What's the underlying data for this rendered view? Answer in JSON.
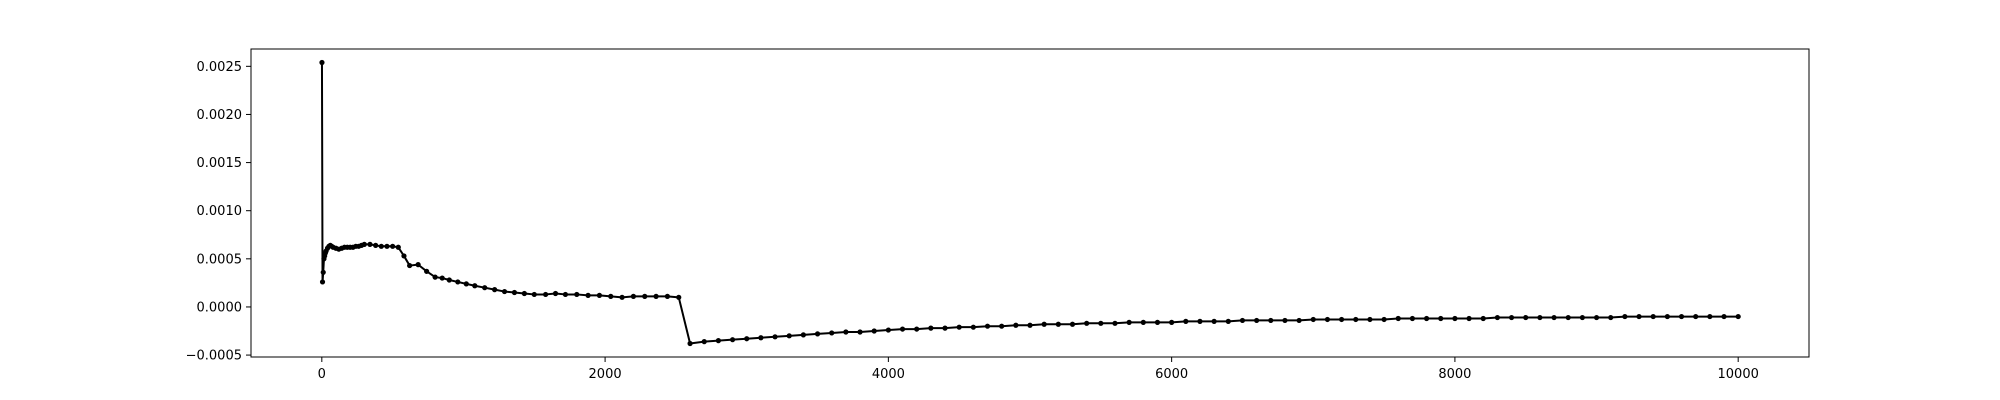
{
  "chart_data": {
    "type": "line",
    "title": "",
    "xlabel": "",
    "ylabel": "",
    "xlim": [
      -500,
      10500
    ],
    "ylim": [
      -0.00052,
      0.00268
    ],
    "grid": false,
    "legend": "none",
    "line_color": "#000000",
    "marker": "dot",
    "x_ticks": [
      0,
      2000,
      4000,
      6000,
      8000,
      10000
    ],
    "x_tick_labels": [
      "0",
      "2000",
      "4000",
      "6000",
      "8000",
      "10000"
    ],
    "y_ticks": [
      -0.0005,
      0.0,
      0.0005,
      0.001,
      0.0015,
      0.002,
      0.0025
    ],
    "y_tick_labels": [
      "−0.0005",
      "0.0000",
      "0.0005",
      "0.0010",
      "0.0015",
      "0.0020",
      "0.0025"
    ],
    "series": [
      {
        "x": [
          1,
          5,
          10,
          15,
          20,
          25,
          30,
          40,
          50,
          60,
          70,
          80,
          100,
          120,
          140,
          160,
          180,
          200,
          220,
          240,
          260,
          280,
          300,
          340,
          380,
          420,
          460,
          500,
          540,
          580,
          620,
          680,
          740,
          800,
          850,
          900,
          960,
          1020,
          1080,
          1150,
          1220,
          1290,
          1360,
          1430,
          1500,
          1580,
          1650,
          1720,
          1800,
          1880,
          1960,
          2040,
          2120,
          2200,
          2280,
          2360,
          2440,
          2520,
          2600,
          2700,
          2800,
          2900,
          3000,
          3100,
          3200,
          3300,
          3400,
          3500,
          3600,
          3700,
          3800,
          3900,
          4000,
          4100,
          4200,
          4300,
          4400,
          4500,
          4600,
          4700,
          4800,
          4900,
          5000,
          5100,
          5200,
          5300,
          5400,
          5500,
          5600,
          5700,
          5800,
          5900,
          6000,
          6100,
          6200,
          6300,
          6400,
          6500,
          6600,
          6700,
          6800,
          6900,
          7000,
          7100,
          7200,
          7300,
          7400,
          7500,
          7600,
          7700,
          7800,
          7900,
          8000,
          8100,
          8200,
          8300,
          8400,
          8500,
          8600,
          8700,
          8800,
          8900,
          9000,
          9100,
          9200,
          9300,
          9400,
          9500,
          9600,
          9700,
          9800,
          9900,
          10000
        ],
        "y": [
          0.00254,
          0.00026,
          0.00036,
          0.0005,
          0.00053,
          0.00056,
          0.00058,
          0.00061,
          0.00063,
          0.00064,
          0.00063,
          0.00062,
          0.00061,
          0.0006,
          0.00061,
          0.00062,
          0.00062,
          0.00062,
          0.00062,
          0.00063,
          0.00063,
          0.00064,
          0.00065,
          0.00065,
          0.00064,
          0.00063,
          0.00063,
          0.00063,
          0.00062,
          0.00053,
          0.00043,
          0.00044,
          0.00037,
          0.00031,
          0.0003,
          0.00028,
          0.00026,
          0.00024,
          0.00022,
          0.0002,
          0.00018,
          0.00016,
          0.00015,
          0.00014,
          0.00013,
          0.00013,
          0.00014,
          0.00013,
          0.00013,
          0.00012,
          0.00012,
          0.00011,
          0.0001,
          0.00011,
          0.00011,
          0.00011,
          0.00011,
          0.0001,
          -0.00038,
          -0.00036,
          -0.00035,
          -0.00034,
          -0.00033,
          -0.00032,
          -0.00031,
          -0.0003,
          -0.00029,
          -0.00028,
          -0.00027,
          -0.00026,
          -0.00026,
          -0.00025,
          -0.00024,
          -0.00023,
          -0.00023,
          -0.00022,
          -0.00022,
          -0.00021,
          -0.00021,
          -0.0002,
          -0.0002,
          -0.00019,
          -0.00019,
          -0.00018,
          -0.00018,
          -0.00018,
          -0.00017,
          -0.00017,
          -0.00017,
          -0.00016,
          -0.00016,
          -0.00016,
          -0.00016,
          -0.00015,
          -0.00015,
          -0.00015,
          -0.00015,
          -0.00014,
          -0.00014,
          -0.00014,
          -0.00014,
          -0.00014,
          -0.00013,
          -0.00013,
          -0.00013,
          -0.00013,
          -0.00013,
          -0.00013,
          -0.00012,
          -0.00012,
          -0.00012,
          -0.00012,
          -0.00012,
          -0.00012,
          -0.00012,
          -0.00011,
          -0.00011,
          -0.00011,
          -0.00011,
          -0.00011,
          -0.00011,
          -0.00011,
          -0.00011,
          -0.00011,
          -0.0001,
          -0.0001,
          -0.0001,
          -0.0001,
          -0.0001,
          -0.0001,
          -0.0001,
          -0.0001,
          -0.0001
        ]
      }
    ]
  }
}
